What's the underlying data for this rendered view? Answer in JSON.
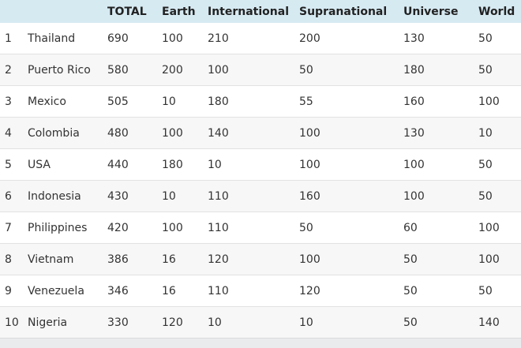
{
  "chart_data": {
    "type": "table",
    "columns": [
      "",
      "",
      "TOTAL",
      "Earth",
      "International",
      "Supranational",
      "Universe",
      "World"
    ],
    "rows": [
      [
        1,
        "Thailand",
        690,
        100,
        210,
        200,
        130,
        50
      ],
      [
        2,
        "Puerto Rico",
        580,
        200,
        100,
        50,
        180,
        50
      ],
      [
        3,
        "Mexico",
        505,
        10,
        180,
        55,
        160,
        100
      ],
      [
        4,
        "Colombia",
        480,
        100,
        140,
        100,
        130,
        10
      ],
      [
        5,
        "USA",
        440,
        180,
        10,
        100,
        100,
        50
      ],
      [
        6,
        "Indonesia",
        430,
        10,
        110,
        160,
        100,
        50
      ],
      [
        7,
        "Philippines",
        420,
        100,
        110,
        50,
        60,
        100
      ],
      [
        8,
        "Vietnam",
        386,
        16,
        120,
        100,
        50,
        100
      ],
      [
        9,
        "Venezuela",
        346,
        16,
        110,
        120,
        50,
        50
      ],
      [
        10,
        "Nigeria",
        330,
        120,
        10,
        10,
        50,
        140
      ]
    ]
  },
  "colors": {
    "header_bg": "#d6eaf2",
    "header_text": "#222222",
    "row_text": "#333333",
    "row_alt_bg": "#f7f7f7",
    "row_border": "#e2e2e2",
    "footer_bg": "#e9ebec"
  }
}
